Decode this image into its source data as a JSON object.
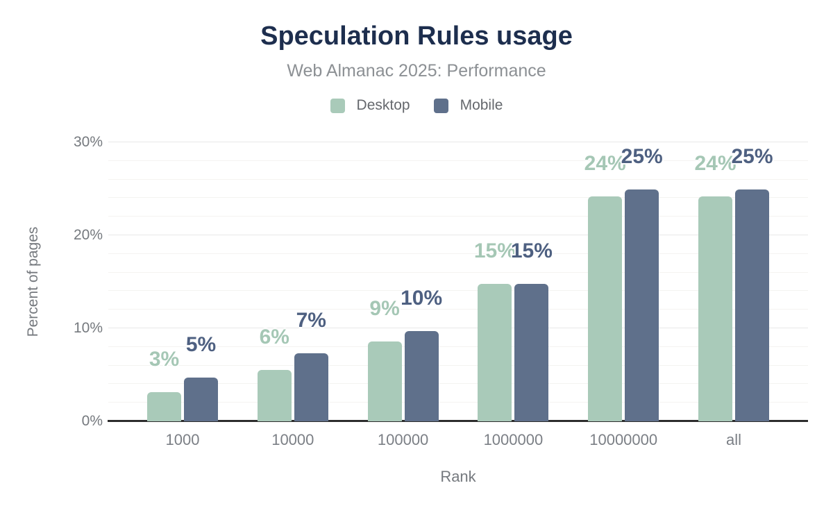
{
  "header": {
    "title": "Speculation Rules usage",
    "subtitle": "Web Almanac 2025: Performance"
  },
  "legend": [
    {
      "name": "Desktop",
      "color": "#a9cab9"
    },
    {
      "name": "Mobile",
      "color": "#5f708b"
    }
  ],
  "axes": {
    "y_title": "Percent of pages",
    "x_title": "Rank",
    "y_ticks": [
      {
        "label": "0%",
        "value": 0
      },
      {
        "label": "10%",
        "value": 10
      },
      {
        "label": "20%",
        "value": 20
      },
      {
        "label": "30%",
        "value": 30
      }
    ]
  },
  "colors": {
    "title_navy": "#1d2e4e",
    "subtitle_gray": "#8c9094",
    "axis_text_gray": "#75797e",
    "desktop_green": "#a9cab9",
    "desktop_label_green": "#a5c7b5",
    "mobile_slate": "#5f708b",
    "mobile_label_slate": "#4e6081",
    "grid_minor": "#f4f3f1",
    "grid_major": "#e8e8e8",
    "axis_baseline": "#2d2d2d",
    "background": "#ffffff"
  },
  "chart_data": {
    "type": "bar",
    "title": "Speculation Rules usage",
    "subtitle": "Web Almanac 2025: Performance",
    "categories": [
      "1000",
      "10000",
      "100000",
      "1000000",
      "10000000",
      "all"
    ],
    "series": [
      {
        "name": "Desktop",
        "color": "#a9cab9",
        "label_color": "#a5c7b5",
        "values": [
          3.1,
          5.5,
          8.6,
          14.8,
          24.2,
          24.2
        ],
        "labels": [
          "3%",
          "6%",
          "9%",
          "15%",
          "24%",
          "24%"
        ]
      },
      {
        "name": "Mobile",
        "color": "#5f708b",
        "label_color": "#4e6081",
        "values": [
          4.7,
          7.3,
          9.7,
          14.8,
          24.9,
          24.9
        ],
        "labels": [
          "5%",
          "7%",
          "10%",
          "15%",
          "25%",
          "25%"
        ]
      }
    ],
    "xlabel": "Rank",
    "ylabel": "Percent of pages",
    "ylim": [
      0,
      30
    ],
    "grid": {
      "minor_step": 2,
      "major_step": 10,
      "visible": true
    },
    "legend_position": "top",
    "data_labels": "above-bars, colored to match series"
  }
}
